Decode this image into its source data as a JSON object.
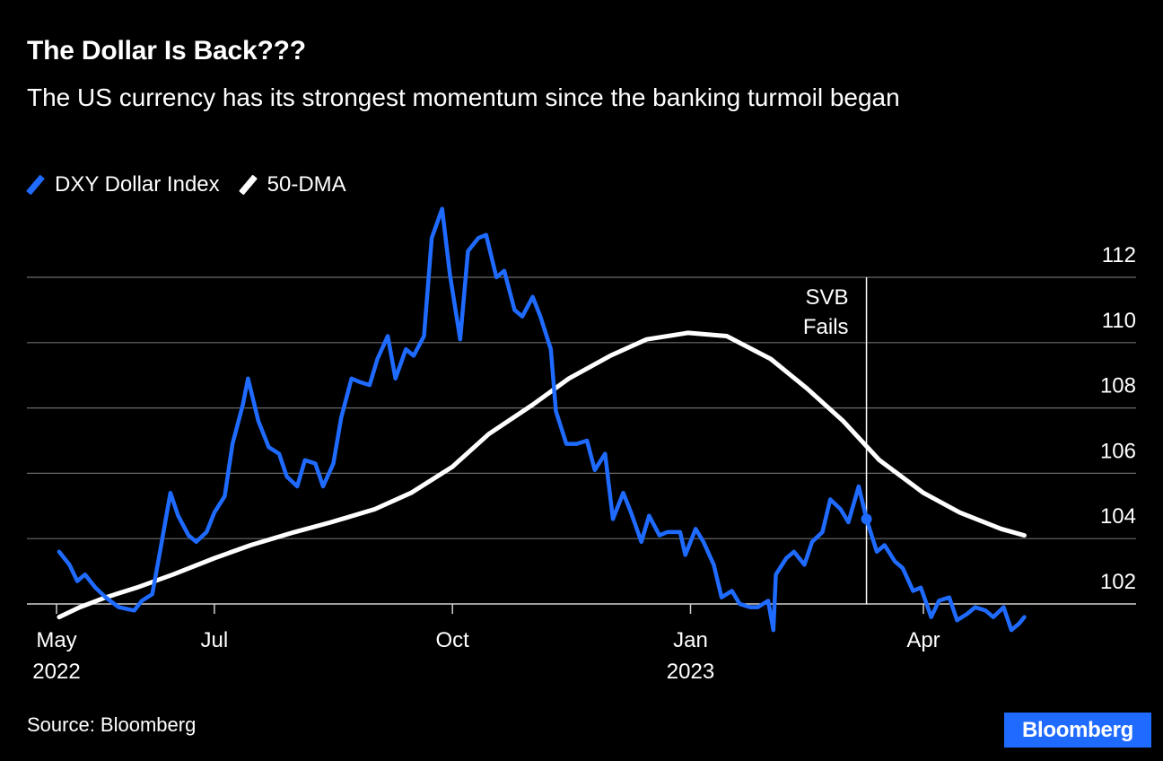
{
  "chart_data": {
    "type": "line",
    "title": "The Dollar Is Back???",
    "subtitle": "The US currency has its strongest momentum since the banking turmoil began",
    "source": "Source: Bloomberg",
    "logo": "Bloomberg",
    "ylim": [
      101.5,
      112.5
    ],
    "yticks": [
      102,
      104,
      106,
      108,
      110,
      112
    ],
    "y_tick_labels": [
      "102",
      "104",
      "106",
      "108",
      "110",
      "112"
    ],
    "grid": true,
    "legend_placement": "top-left",
    "x_range": [
      "2022-04-29",
      "2023-05-10"
    ],
    "x_ticks": [
      {
        "date": "2022-05-01",
        "label": "May",
        "year": "2022"
      },
      {
        "date": "2022-07-01",
        "label": "Jul",
        "year": ""
      },
      {
        "date": "2022-10-01",
        "label": "Oct",
        "year": ""
      },
      {
        "date": "2023-01-01",
        "label": "Jan",
        "year": "2023"
      },
      {
        "date": "2023-04-01",
        "label": "Apr",
        "year": ""
      }
    ],
    "annotations": [
      {
        "date": "2023-03-10",
        "lines": [
          "SVB",
          "Fails"
        ],
        "marker_value": 104.6
      }
    ],
    "series": [
      {
        "name": "DXY Dollar Index",
        "color": "#1f6bff",
        "points": [
          [
            "2022-05-02",
            103.6
          ],
          [
            "2022-05-06",
            103.2
          ],
          [
            "2022-05-09",
            102.7
          ],
          [
            "2022-05-12",
            102.9
          ],
          [
            "2022-05-16",
            102.5
          ],
          [
            "2022-05-20",
            102.2
          ],
          [
            "2022-05-25",
            101.9
          ],
          [
            "2022-05-31",
            101.8
          ],
          [
            "2022-06-03",
            102.1
          ],
          [
            "2022-06-07",
            102.3
          ],
          [
            "2022-06-10",
            103.6
          ],
          [
            "2022-06-14",
            105.4
          ],
          [
            "2022-06-17",
            104.7
          ],
          [
            "2022-06-21",
            104.1
          ],
          [
            "2022-06-24",
            103.9
          ],
          [
            "2022-06-28",
            104.2
          ],
          [
            "2022-07-01",
            104.8
          ],
          [
            "2022-07-05",
            105.3
          ],
          [
            "2022-07-08",
            106.9
          ],
          [
            "2022-07-12",
            108.1
          ],
          [
            "2022-07-14",
            108.9
          ],
          [
            "2022-07-18",
            107.6
          ],
          [
            "2022-07-22",
            106.8
          ],
          [
            "2022-07-26",
            106.6
          ],
          [
            "2022-07-29",
            105.9
          ],
          [
            "2022-08-02",
            105.6
          ],
          [
            "2022-08-05",
            106.4
          ],
          [
            "2022-08-09",
            106.3
          ],
          [
            "2022-08-12",
            105.6
          ],
          [
            "2022-08-16",
            106.3
          ],
          [
            "2022-08-19",
            107.7
          ],
          [
            "2022-08-23",
            108.9
          ],
          [
            "2022-08-26",
            108.8
          ],
          [
            "2022-08-30",
            108.7
          ],
          [
            "2022-09-02",
            109.5
          ],
          [
            "2022-09-06",
            110.2
          ],
          [
            "2022-09-09",
            108.9
          ],
          [
            "2022-09-13",
            109.8
          ],
          [
            "2022-09-16",
            109.6
          ],
          [
            "2022-09-20",
            110.2
          ],
          [
            "2022-09-23",
            113.2
          ],
          [
            "2022-09-27",
            114.1
          ],
          [
            "2022-09-30",
            112.1
          ],
          [
            "2022-10-04",
            110.1
          ],
          [
            "2022-10-07",
            112.8
          ],
          [
            "2022-10-11",
            113.2
          ],
          [
            "2022-10-14",
            113.3
          ],
          [
            "2022-10-18",
            112.0
          ],
          [
            "2022-10-21",
            112.2
          ],
          [
            "2022-10-25",
            111.0
          ],
          [
            "2022-10-28",
            110.8
          ],
          [
            "2022-11-01",
            111.4
          ],
          [
            "2022-11-04",
            110.8
          ],
          [
            "2022-11-08",
            109.8
          ],
          [
            "2022-11-10",
            107.9
          ],
          [
            "2022-11-14",
            106.9
          ],
          [
            "2022-11-18",
            106.9
          ],
          [
            "2022-11-22",
            107.0
          ],
          [
            "2022-11-25",
            106.1
          ],
          [
            "2022-11-29",
            106.6
          ],
          [
            "2022-12-02",
            104.6
          ],
          [
            "2022-12-06",
            105.4
          ],
          [
            "2022-12-09",
            104.8
          ],
          [
            "2022-12-13",
            103.9
          ],
          [
            "2022-12-16",
            104.7
          ],
          [
            "2022-12-20",
            104.1
          ],
          [
            "2022-12-23",
            104.2
          ],
          [
            "2022-12-28",
            104.2
          ],
          [
            "2022-12-30",
            103.5
          ],
          [
            "2023-01-03",
            104.3
          ],
          [
            "2023-01-06",
            103.9
          ],
          [
            "2023-01-10",
            103.2
          ],
          [
            "2023-01-13",
            102.2
          ],
          [
            "2023-01-17",
            102.4
          ],
          [
            "2023-01-20",
            102.0
          ],
          [
            "2023-01-24",
            101.9
          ],
          [
            "2023-01-27",
            101.9
          ],
          [
            "2023-01-31",
            102.1
          ],
          [
            "2023-02-02",
            101.2
          ],
          [
            "2023-02-03",
            102.9
          ],
          [
            "2023-02-07",
            103.4
          ],
          [
            "2023-02-10",
            103.6
          ],
          [
            "2023-02-14",
            103.2
          ],
          [
            "2023-02-17",
            103.9
          ],
          [
            "2023-02-21",
            104.2
          ],
          [
            "2023-02-24",
            105.2
          ],
          [
            "2023-02-28",
            104.9
          ],
          [
            "2023-03-03",
            104.5
          ],
          [
            "2023-03-07",
            105.6
          ],
          [
            "2023-03-10",
            104.6
          ],
          [
            "2023-03-14",
            103.6
          ],
          [
            "2023-03-17",
            103.8
          ],
          [
            "2023-03-21",
            103.3
          ],
          [
            "2023-03-24",
            103.1
          ],
          [
            "2023-03-28",
            102.4
          ],
          [
            "2023-03-31",
            102.5
          ],
          [
            "2023-04-04",
            101.6
          ],
          [
            "2023-04-07",
            102.1
          ],
          [
            "2023-04-11",
            102.2
          ],
          [
            "2023-04-14",
            101.5
          ],
          [
            "2023-04-18",
            101.7
          ],
          [
            "2023-04-21",
            101.9
          ],
          [
            "2023-04-25",
            101.8
          ],
          [
            "2023-04-28",
            101.6
          ],
          [
            "2023-05-02",
            101.9
          ],
          [
            "2023-05-05",
            101.2
          ],
          [
            "2023-05-08",
            101.4
          ],
          [
            "2023-05-10",
            101.6
          ]
        ]
      },
      {
        "name": "50-DMA",
        "color": "#ffffff",
        "points": [
          [
            "2022-05-02",
            101.6
          ],
          [
            "2022-05-10",
            101.9
          ],
          [
            "2022-05-20",
            102.2
          ],
          [
            "2022-06-01",
            102.5
          ],
          [
            "2022-06-15",
            102.9
          ],
          [
            "2022-07-01",
            103.4
          ],
          [
            "2022-07-15",
            103.8
          ],
          [
            "2022-08-01",
            104.2
          ],
          [
            "2022-08-15",
            104.5
          ],
          [
            "2022-09-01",
            104.9
          ],
          [
            "2022-09-15",
            105.4
          ],
          [
            "2022-10-01",
            106.2
          ],
          [
            "2022-10-15",
            107.2
          ],
          [
            "2022-11-01",
            108.1
          ],
          [
            "2022-11-15",
            108.9
          ],
          [
            "2022-12-01",
            109.6
          ],
          [
            "2022-12-15",
            110.1
          ],
          [
            "2022-12-31",
            110.3
          ],
          [
            "2023-01-15",
            110.2
          ],
          [
            "2023-02-01",
            109.5
          ],
          [
            "2023-02-15",
            108.6
          ],
          [
            "2023-03-01",
            107.6
          ],
          [
            "2023-03-15",
            106.4
          ],
          [
            "2023-04-01",
            105.4
          ],
          [
            "2023-04-15",
            104.8
          ],
          [
            "2023-05-01",
            104.3
          ],
          [
            "2023-05-10",
            104.1
          ]
        ]
      }
    ]
  }
}
